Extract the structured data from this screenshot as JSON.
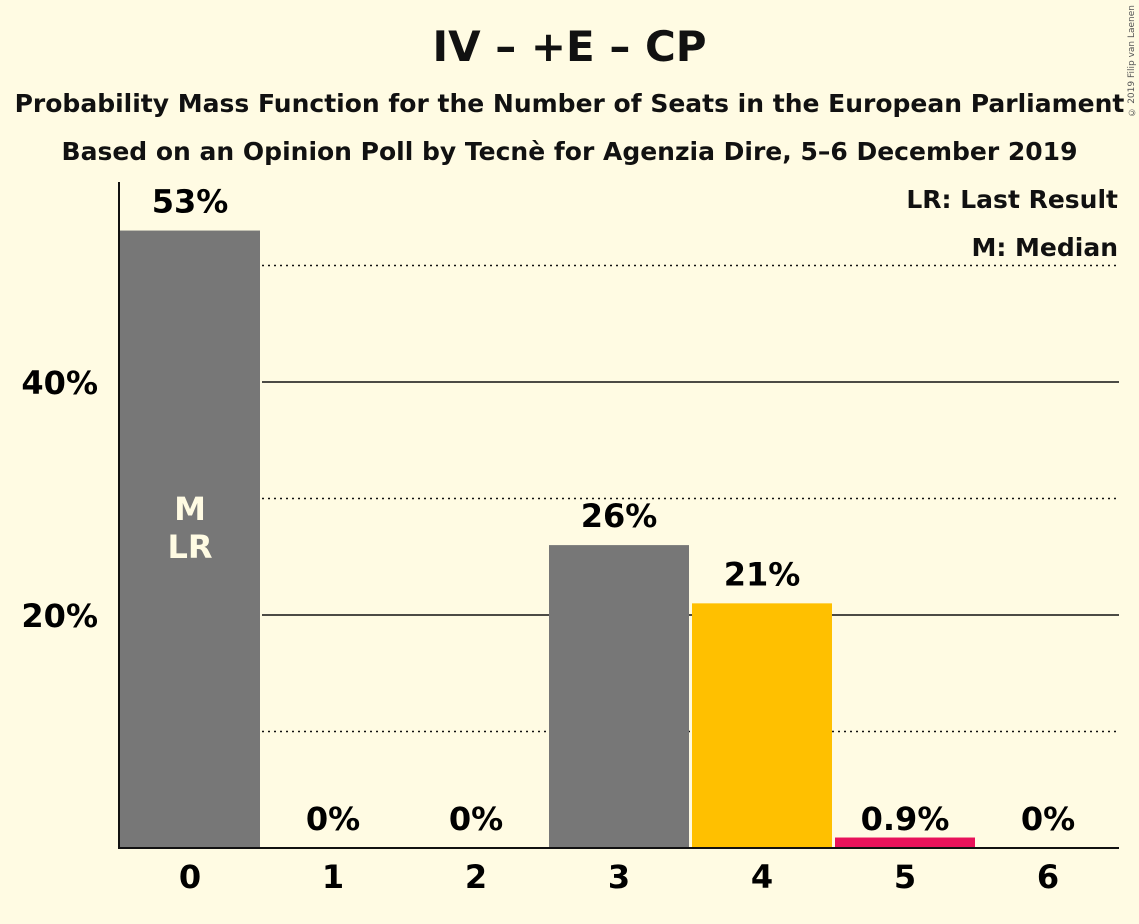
{
  "title": "IV – +E – CP",
  "subtitle": "Probability Mass Function for the Number of Seats in the European Parliament",
  "subtitle2": "Based on an Opinion Poll by Tecnè for Agenzia Dire, 5–6 December 2019",
  "legend": {
    "last_result": "LR: Last Result",
    "median": "M: Median"
  },
  "copyright": "© 2019 Filip van Laenen",
  "colors": {
    "background": "#fffbe3",
    "grey": "#777777",
    "yellow": "#ffc000",
    "red": "#e8125a"
  },
  "chart_data": {
    "type": "bar",
    "categories": [
      "0",
      "1",
      "2",
      "3",
      "4",
      "5",
      "6"
    ],
    "values": [
      53,
      0,
      0,
      26,
      21,
      0.9,
      0
    ],
    "value_labels": [
      "53%",
      "0%",
      "0%",
      "26%",
      "21%",
      "0.9%",
      "0%"
    ],
    "bar_colors": [
      "#777777",
      "#777777",
      "#777777",
      "#777777",
      "#ffc000",
      "#e8125a",
      "#777777"
    ],
    "inside_labels": [
      "M",
      "LR"
    ],
    "median_category": "0",
    "last_result_category": "0",
    "y_ticks": [
      {
        "value": 20,
        "label": "20%"
      },
      {
        "value": 40,
        "label": "40%"
      }
    ],
    "gridlines_solid": [
      20,
      40
    ],
    "gridlines_dotted": [
      10,
      30,
      50
    ],
    "ylim": [
      0,
      57
    ],
    "xlabel": "",
    "ylabel": "",
    "legend_position": "top-right"
  }
}
